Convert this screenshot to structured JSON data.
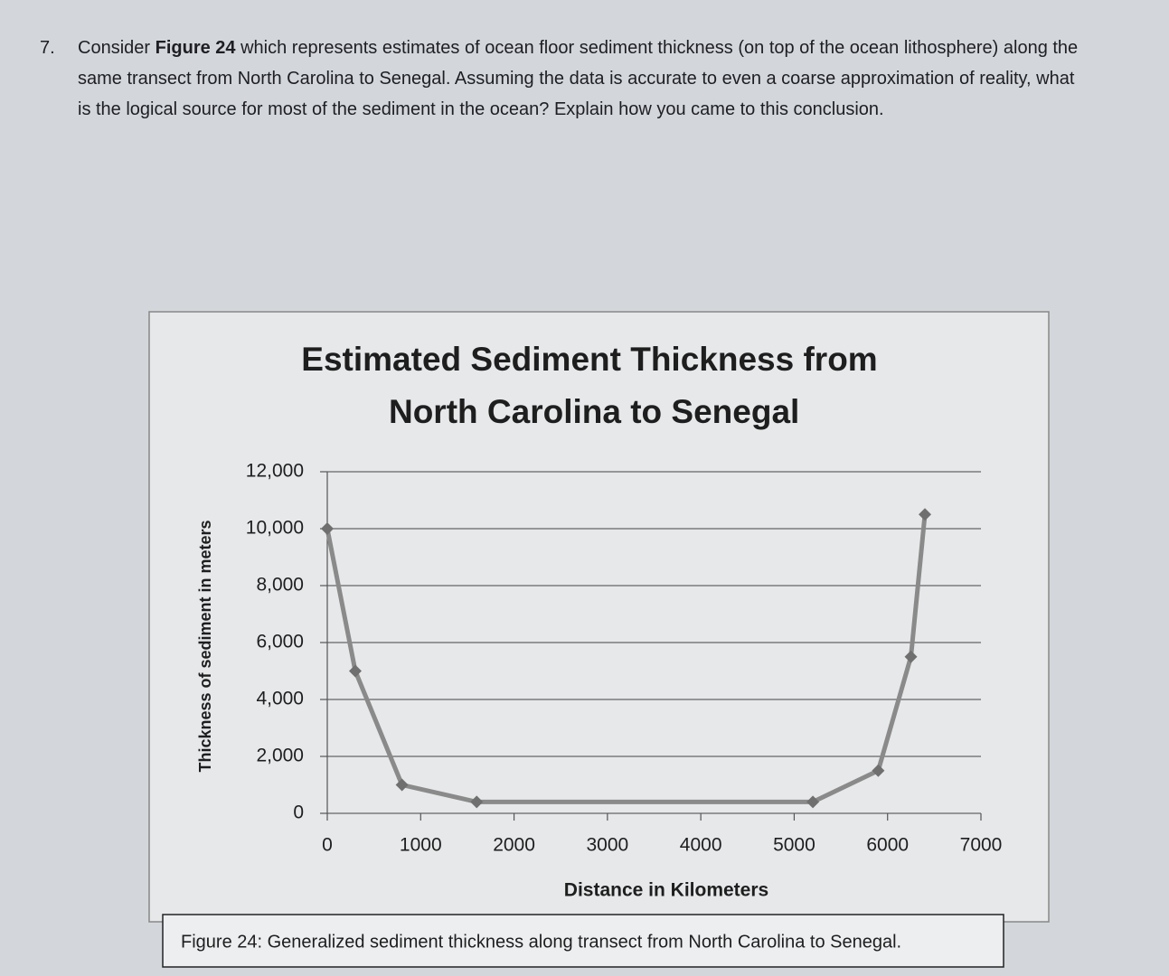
{
  "question": {
    "number": "7.",
    "text_before": "Consider ",
    "bold": "Figure 24",
    "text_after": " which represents estimates of ocean floor sediment thickness (on top of the ocean lithosphere) along the same transect from North Carolina to Senegal. Assuming the data is accurate to even a coarse approximation of reality, what is the logical source for most of the sediment in the ocean? Explain how you came to this conclusion."
  },
  "chart_data": {
    "type": "line",
    "title": "Estimated Sediment Thickness from North Carolina to Senegal",
    "x_label": "Distance in Kilometers",
    "y_label": "Thickness of sediment in meters",
    "x": [
      0,
      300,
      800,
      1600,
      5200,
      5900,
      6250,
      6400
    ],
    "values": [
      10000,
      5000,
      1000,
      400,
      400,
      1500,
      5500,
      10500
    ],
    "color": "#8a8a8a",
    "xlim": [
      0,
      7000
    ],
    "xticks": [
      0,
      1000,
      2000,
      3000,
      4000,
      5000,
      6000,
      7000
    ],
    "ylim": [
      0,
      12000
    ],
    "yticks": [
      0,
      {
        "value": 2000,
        "label": "2,000"
      },
      {
        "value": 4000,
        "label": "4,000"
      },
      {
        "value": 6000,
        "label": "6,000"
      },
      {
        "value": 8000,
        "label": "8,000"
      },
      {
        "value": 10000,
        "label": "10,000"
      },
      {
        "value": 12000,
        "label": "12,000"
      }
    ],
    "grid": true
  },
  "caption": "Figure 24: Generalized sediment thickness along transect from North Carolina to Senegal."
}
